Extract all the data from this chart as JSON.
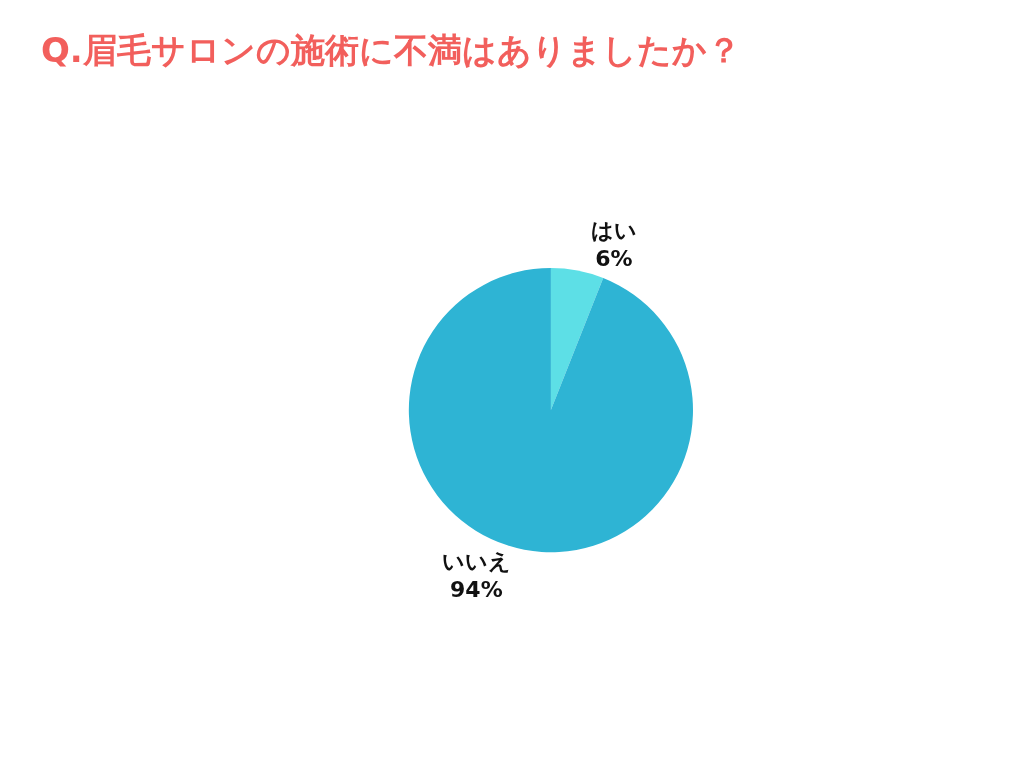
{
  "chart_data": {
    "type": "pie",
    "title": "Q.眉毛サロンの施術に不満はありましたか？",
    "categories": [
      "はい",
      "いいえ"
    ],
    "values": [
      6,
      94
    ],
    "value_labels": [
      "6%",
      "94%"
    ],
    "colors": [
      "#5ddfe6",
      "#2eb4d4"
    ],
    "legend": false
  }
}
